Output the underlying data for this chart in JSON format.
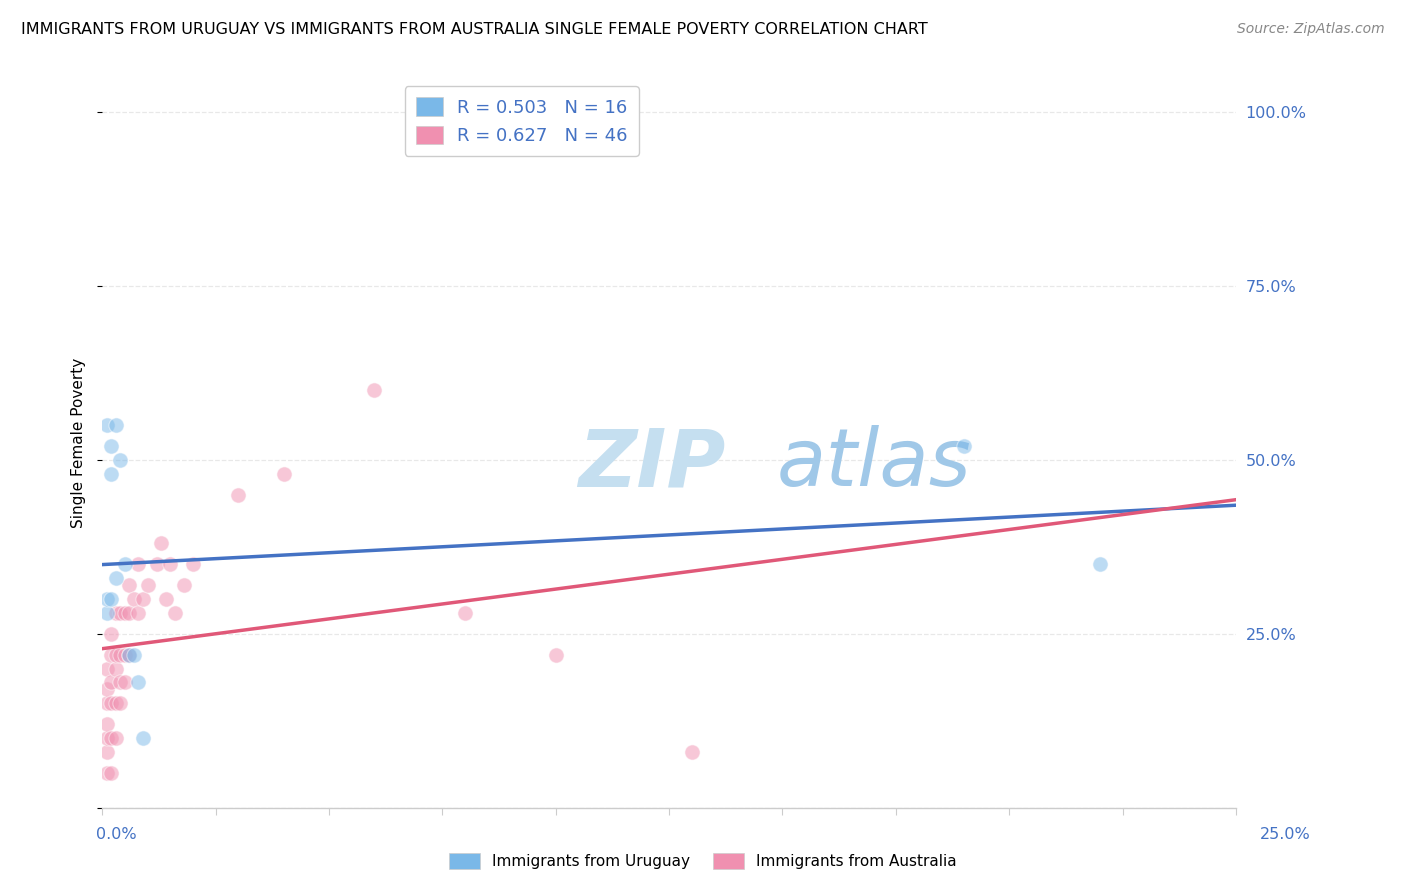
{
  "title": "IMMIGRANTS FROM URUGUAY VS IMMIGRANTS FROM AUSTRALIA SINGLE FEMALE POVERTY CORRELATION CHART",
  "source": "Source: ZipAtlas.com",
  "ylabel": "Single Female Poverty",
  "legend_entries": [
    {
      "label": "Immigrants from Uruguay",
      "color": "#a8c8e8",
      "R": 0.503,
      "N": 16
    },
    {
      "label": "Immigrants from Australia",
      "color": "#f4a0b8",
      "R": 0.627,
      "N": 46
    }
  ],
  "uruguay_x": [
    0.001,
    0.001,
    0.001,
    0.002,
    0.002,
    0.002,
    0.003,
    0.003,
    0.004,
    0.005,
    0.006,
    0.007,
    0.008,
    0.009,
    0.19,
    0.22
  ],
  "uruguay_y": [
    0.28,
    0.3,
    0.55,
    0.52,
    0.48,
    0.3,
    0.55,
    0.33,
    0.5,
    0.35,
    0.22,
    0.22,
    0.18,
    0.1,
    0.52,
    0.35
  ],
  "australia_x": [
    0.001,
    0.001,
    0.001,
    0.001,
    0.001,
    0.001,
    0.001,
    0.002,
    0.002,
    0.002,
    0.002,
    0.002,
    0.002,
    0.003,
    0.003,
    0.003,
    0.003,
    0.003,
    0.004,
    0.004,
    0.004,
    0.004,
    0.005,
    0.005,
    0.005,
    0.006,
    0.006,
    0.006,
    0.007,
    0.008,
    0.008,
    0.009,
    0.01,
    0.012,
    0.013,
    0.014,
    0.015,
    0.016,
    0.018,
    0.02,
    0.03,
    0.04,
    0.06,
    0.08,
    0.1,
    0.13
  ],
  "australia_y": [
    0.05,
    0.08,
    0.1,
    0.12,
    0.15,
    0.17,
    0.2,
    0.05,
    0.1,
    0.15,
    0.18,
    0.22,
    0.25,
    0.1,
    0.15,
    0.2,
    0.22,
    0.28,
    0.15,
    0.18,
    0.22,
    0.28,
    0.18,
    0.22,
    0.28,
    0.22,
    0.28,
    0.32,
    0.3,
    0.28,
    0.35,
    0.3,
    0.32,
    0.35,
    0.38,
    0.3,
    0.35,
    0.28,
    0.32,
    0.35,
    0.45,
    0.48,
    0.6,
    0.28,
    0.22,
    0.08
  ],
  "xlim": [
    0.0,
    0.25
  ],
  "ylim": [
    0.0,
    1.05
  ],
  "yticks": [
    0.0,
    0.25,
    0.5,
    0.75,
    1.0
  ],
  "ytick_labels": [
    "",
    "25.0%",
    "50.0%",
    "75.0%",
    "100.0%"
  ],
  "background_color": "#ffffff",
  "grid_color": "#e8e8e8",
  "axis_color": "#cccccc",
  "title_fontsize": 11.5,
  "source_fontsize": 10,
  "scatter_size": 120,
  "scatter_alpha": 0.5,
  "uruguay_color": "#7ab8e8",
  "australia_color": "#f090b0",
  "trend_uruguay_color": "#4472c4",
  "trend_australia_color": "#e05878",
  "watermark_zip_color": "#c5dff0",
  "watermark_atlas_color": "#a0c8e8"
}
